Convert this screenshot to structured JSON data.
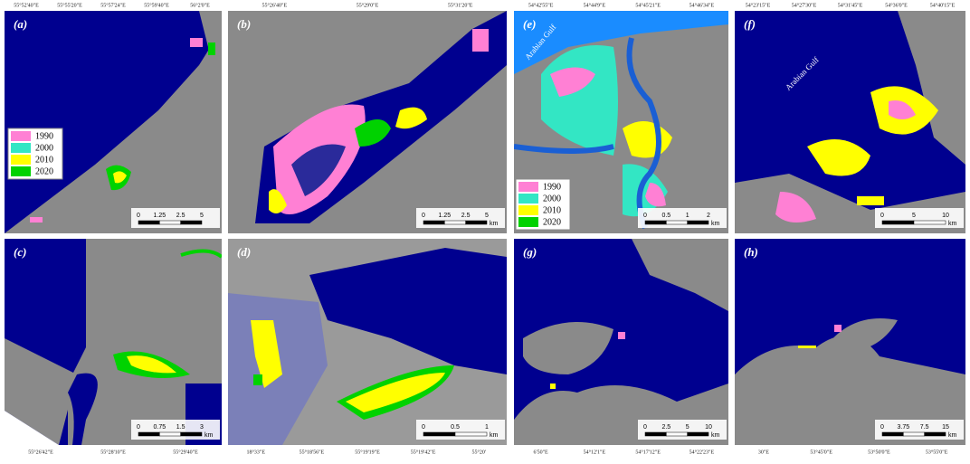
{
  "panels": [
    {
      "label": "(a)",
      "coords": [
        "55°52'40\"E",
        "55°55'20\"E",
        "55°57'24\"E",
        "55°59'40\"E",
        "56°2'0\"E"
      ],
      "legend": [
        {
          "label": "1990",
          "color": "#ff80d4"
        },
        {
          "label": "2000",
          "color": "#33e6c4"
        },
        {
          "label": "2010",
          "color": "#ffff00"
        },
        {
          "label": "2020",
          "color": "#00d200"
        }
      ],
      "scale": [
        "0",
        "1.25",
        "2.5",
        "5"
      ]
    },
    {
      "label": "(b)",
      "coords": [
        "55°26'40\"E",
        "55°29'0\"E",
        "55°31'20\"E"
      ],
      "scale": [
        "0",
        "1.25",
        "2.5",
        "5"
      ],
      "unit": "km"
    },
    {
      "label": "(c)",
      "coords": [
        "55°26'42\"E",
        "55°28'10\"E",
        "55°29'40\"E"
      ],
      "scale": [
        "0",
        "0.75",
        "1.5",
        "3"
      ],
      "unit": "km"
    },
    {
      "label": "(d)",
      "coords": [
        "18°33\"E",
        "55°18'56\"E",
        "55°19'19\"E",
        "55°19'42\"E",
        "55°20'"
      ],
      "scale": [
        "0",
        "0.5",
        "1"
      ],
      "unit": "km"
    },
    {
      "label": "(e)",
      "coords": [
        "54°42'55\"E",
        "54°44'9\"E",
        "54°45'21\"E",
        "54°46'34\"E"
      ],
      "legend": [
        {
          "label": "1990",
          "color": "#ff80d4"
        },
        {
          "label": "2000",
          "color": "#33e6c4"
        },
        {
          "label": "2010",
          "color": "#ffff00"
        },
        {
          "label": "2020",
          "color": "#00d200"
        }
      ],
      "annotation": "Arabian Gulf",
      "scale": [
        "0",
        "0.5",
        "1",
        "2"
      ],
      "unit": "km"
    },
    {
      "label": "(f)",
      "coords": [
        "54°23'15\"E",
        "54°27'30\"E",
        "54°31'45\"E",
        "54°36'0\"E",
        "54°40'15\"E"
      ],
      "annotation": "Arabian Gulf",
      "scale": [
        "0",
        "5",
        "10"
      ],
      "unit": "km"
    },
    {
      "label": "(g)",
      "coords": [
        "6'50\"E",
        "54°12'1\"E",
        "54°17'12\"E",
        "54°22'23\"E"
      ],
      "scale": [
        "0",
        "2.5",
        "5",
        "10"
      ],
      "unit": "km"
    },
    {
      "label": "(h)",
      "coords": [
        "30\"E",
        "53°45'0\"E",
        "53°50'0\"E",
        "53°55'0\"E"
      ],
      "scale": [
        "0",
        "3.75",
        "7.5",
        "15"
      ],
      "unit": "km"
    }
  ]
}
